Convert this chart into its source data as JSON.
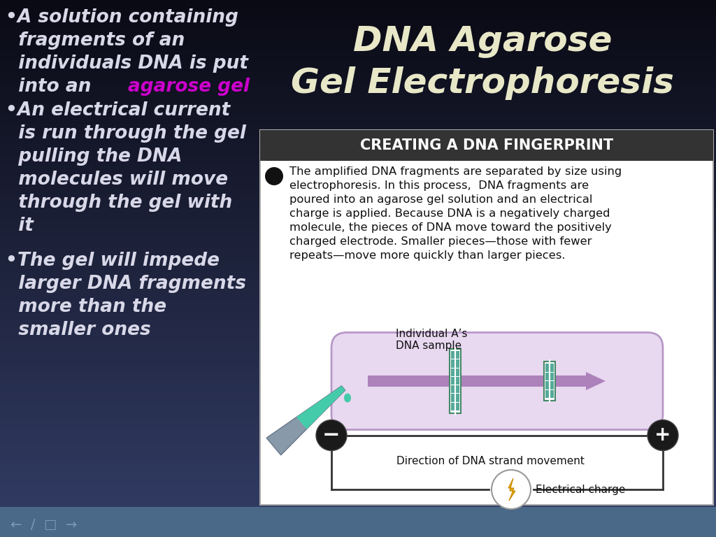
{
  "title_line1": "DNA Agarose",
  "title_line2": "Gel Electrophoresis",
  "title_color": "#e8e8c8",
  "bg_color": "#000000",
  "bg_gradient_top": "#0a0a1a",
  "bg_gradient_mid": "#1a2035",
  "bg_gradient_bot": "#2a3550",
  "bullet_color": "#d8d8e8",
  "magenta_color": "#cc00cc",
  "bullet1_text": "•A solution containing\n  fragments of an\n  individuals DNA is put\n  into an ",
  "bullet1_highlight": "agarose gel",
  "bullet2": "•An electrical current\n  is run through the gel\n  pulling the DNA\n  molecules will move\n  through the gel with\n  it",
  "bullet3": "•The gel will impede\n  larger DNA fragments\n  more than the\n  smaller ones",
  "box_bg": "#ffffff",
  "box_border": "#aaaaaa",
  "box_header_bg": "#333333",
  "box_header_text": "CREATING A DNA FINGERPRINT",
  "box_header_color": "#ffffff",
  "body_text": "The amplified DNA fragments are separated by size using\nelectrophoresis. In this process,  DNA fragments are\npoured into an agarose gel solution and an electrical\ncharge is applied. Because DNA is a negatively charged\nmolecule, the pieces of DNA move toward the positively\ncharged electrode. Smaller pieces—those with fewer\nrepeats—move more quickly than larger pieces.",
  "gel_bg": "#e8d8f0",
  "gel_border": "#b898c8",
  "gel_arrow_color": "#9966aa",
  "electrode_neg": "−",
  "electrode_pos": "+",
  "electrode_color": "#1a1a1a",
  "label_dna": "Individual A’s\nDNA sample",
  "label_direction": "Direction of DNA strand movement",
  "label_electrical": "Electrical charge",
  "bottom_bar_color1": "#3a5070",
  "bottom_bar_color2": "#5a7090",
  "footer_icons_color": "#7a9ab8"
}
